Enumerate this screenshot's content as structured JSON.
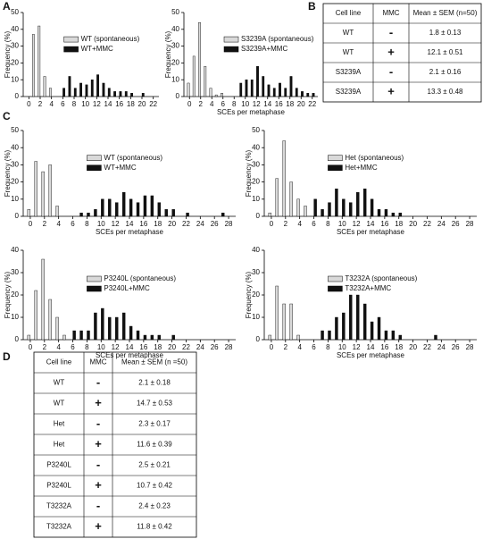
{
  "panel_labels": [
    "A",
    "B",
    "C",
    "D"
  ],
  "chart_data": [
    {
      "type": "bar",
      "ylabel": "Frequency (%)",
      "x": [
        0,
        1,
        2,
        3,
        4,
        5,
        6,
        7,
        8,
        9,
        10,
        11,
        12,
        13,
        14,
        15,
        16,
        17,
        18,
        19,
        20,
        21,
        22
      ],
      "xlim": [
        -1,
        23
      ],
      "xticks": [
        0,
        2,
        4,
        6,
        8,
        10,
        12,
        14,
        16,
        18,
        20,
        22
      ],
      "ylim": [
        0,
        50
      ],
      "yticks": [
        0,
        10,
        20,
        30,
        40,
        50
      ],
      "series": [
        {
          "name": "WT (spontaneous)",
          "color": "#d9d9d9",
          "values": [
            0,
            37,
            42,
            12,
            5,
            0,
            0,
            0,
            0,
            0,
            0,
            0,
            0,
            0,
            0,
            0,
            0,
            0,
            0,
            0,
            0,
            0,
            0
          ]
        },
        {
          "name": "WT+MMC",
          "color": "#111111",
          "values": [
            0,
            0,
            0,
            0,
            0,
            0,
            5,
            12,
            5,
            8,
            7,
            10,
            13,
            8,
            5,
            3,
            3,
            3,
            2,
            0,
            2,
            0,
            0
          ]
        }
      ]
    },
    {
      "type": "bar",
      "ylabel": "Frequency (%)",
      "xlabel": "SCEs per metaphase",
      "x": [
        0,
        1,
        2,
        3,
        4,
        5,
        6,
        7,
        8,
        9,
        10,
        11,
        12,
        13,
        14,
        15,
        16,
        17,
        18,
        19,
        20,
        21,
        22
      ],
      "xlim": [
        -1,
        23
      ],
      "xticks": [
        0,
        2,
        4,
        6,
        8,
        10,
        12,
        14,
        16,
        18,
        20,
        22
      ],
      "ylim": [
        0,
        50
      ],
      "yticks": [
        0,
        10,
        20,
        30,
        40,
        50
      ],
      "series": [
        {
          "name": "S3239A (spontaneous)",
          "color": "#d9d9d9",
          "values": [
            8,
            24,
            44,
            18,
            5,
            1,
            2,
            0,
            0,
            0,
            0,
            0,
            0,
            0,
            0,
            0,
            0,
            0,
            0,
            0,
            0,
            0,
            0
          ]
        },
        {
          "name": "S3239A+MMC",
          "color": "#111111",
          "values": [
            0,
            0,
            0,
            0,
            0,
            0,
            0,
            0,
            0,
            8,
            10,
            10,
            18,
            12,
            7,
            5,
            8,
            5,
            12,
            5,
            3,
            2,
            2
          ]
        }
      ]
    },
    {
      "type": "bar",
      "ylabel": "Frequency (%)",
      "xlabel": "SCEs per metaphase",
      "x": [
        0,
        1,
        2,
        3,
        4,
        5,
        6,
        7,
        8,
        9,
        10,
        11,
        12,
        13,
        14,
        15,
        16,
        17,
        18,
        19,
        20,
        21,
        22,
        23,
        24,
        25,
        26,
        27,
        28
      ],
      "xlim": [
        -1,
        29
      ],
      "xticks": [
        0,
        2,
        4,
        6,
        8,
        10,
        12,
        14,
        16,
        18,
        20,
        22,
        24,
        26,
        28
      ],
      "ylim": [
        0,
        50
      ],
      "yticks": [
        0,
        10,
        20,
        30,
        40,
        50
      ],
      "series": [
        {
          "name": "WT (spontaneous)",
          "color": "#d9d9d9",
          "values": [
            4,
            32,
            26,
            30,
            6,
            0,
            0,
            0,
            0,
            0,
            0,
            0,
            0,
            0,
            0,
            0,
            0,
            0,
            0,
            0,
            0,
            0,
            0,
            0,
            0,
            0,
            0,
            0,
            0
          ]
        },
        {
          "name": "WT+MMC",
          "color": "#111111",
          "values": [
            0,
            0,
            0,
            0,
            0,
            0,
            0,
            2,
            2,
            4,
            10,
            10,
            8,
            14,
            10,
            8,
            12,
            12,
            8,
            4,
            4,
            0,
            2,
            0,
            0,
            0,
            0,
            2,
            0
          ]
        }
      ]
    },
    {
      "type": "bar",
      "ylabel": "Frequency (%)",
      "xlabel": "SCEs per metaphase",
      "x": [
        0,
        1,
        2,
        3,
        4,
        5,
        6,
        7,
        8,
        9,
        10,
        11,
        12,
        13,
        14,
        15,
        16,
        17,
        18,
        19,
        20,
        21,
        22,
        23,
        24,
        25,
        26,
        27,
        28
      ],
      "xlim": [
        -1,
        29
      ],
      "xticks": [
        0,
        2,
        4,
        6,
        8,
        10,
        12,
        14,
        16,
        18,
        20,
        22,
        24,
        26,
        28
      ],
      "ylim": [
        0,
        50
      ],
      "yticks": [
        0,
        10,
        20,
        30,
        40,
        50
      ],
      "series": [
        {
          "name": "Het (spontaneous)",
          "color": "#d9d9d9",
          "values": [
            2,
            22,
            44,
            20,
            10,
            6,
            0,
            0,
            0,
            0,
            0,
            0,
            0,
            0,
            0,
            0,
            0,
            0,
            0,
            0,
            0,
            0,
            0,
            0,
            0,
            0,
            0,
            0,
            0
          ]
        },
        {
          "name": "Het+MMC",
          "color": "#111111",
          "values": [
            0,
            0,
            0,
            0,
            0,
            0,
            10,
            4,
            8,
            16,
            10,
            8,
            14,
            16,
            10,
            4,
            4,
            2,
            2,
            0,
            0,
            0,
            0,
            0,
            0,
            0,
            0,
            0,
            0
          ]
        }
      ]
    },
    {
      "type": "bar",
      "ylabel": "Frequency (%)",
      "xlabel": "SCEs per metaphase",
      "x": [
        0,
        1,
        2,
        3,
        4,
        5,
        6,
        7,
        8,
        9,
        10,
        11,
        12,
        13,
        14,
        15,
        16,
        17,
        18,
        19,
        20,
        21,
        22,
        23,
        24,
        25,
        26,
        27,
        28
      ],
      "xlim": [
        -1,
        29
      ],
      "xticks": [
        0,
        2,
        4,
        6,
        8,
        10,
        12,
        14,
        16,
        18,
        20,
        22,
        24,
        26,
        28
      ],
      "ylim": [
        0,
        40
      ],
      "yticks": [
        0,
        10,
        20,
        30,
        40
      ],
      "series": [
        {
          "name": "P3240L (spontaneous)",
          "color": "#d9d9d9",
          "values": [
            2,
            22,
            36,
            18,
            10,
            2,
            0,
            0,
            0,
            0,
            0,
            0,
            0,
            0,
            0,
            0,
            0,
            0,
            0,
            0,
            0,
            0,
            0,
            0,
            0,
            0,
            0,
            0,
            0
          ]
        },
        {
          "name": "P3240L+MMC",
          "color": "#111111",
          "values": [
            0,
            0,
            0,
            0,
            0,
            0,
            4,
            4,
            4,
            12,
            14,
            10,
            10,
            12,
            6,
            4,
            2,
            2,
            2,
            0,
            2,
            0,
            0,
            0,
            0,
            0,
            0,
            0,
            0
          ]
        }
      ]
    },
    {
      "type": "bar",
      "ylabel": "Frequency (%)",
      "xlabel": "SCEs per metaphase",
      "x": [
        0,
        1,
        2,
        3,
        4,
        5,
        6,
        7,
        8,
        9,
        10,
        11,
        12,
        13,
        14,
        15,
        16,
        17,
        18,
        19,
        20,
        21,
        22,
        23,
        24,
        25,
        26,
        27,
        28
      ],
      "xlim": [
        -1,
        29
      ],
      "xticks": [
        0,
        2,
        4,
        6,
        8,
        10,
        12,
        14,
        16,
        18,
        20,
        22,
        24,
        26,
        28
      ],
      "ylim": [
        0,
        40
      ],
      "yticks": [
        0,
        10,
        20,
        30,
        40
      ],
      "series": [
        {
          "name": "T3232A (spontaneous)",
          "color": "#d9d9d9",
          "values": [
            2,
            24,
            16,
            16,
            2,
            0,
            0,
            0,
            0,
            0,
            0,
            0,
            0,
            0,
            0,
            0,
            0,
            0,
            0,
            0,
            0,
            0,
            0,
            0,
            0,
            0,
            0,
            0,
            0
          ]
        },
        {
          "name": "T3232A+MMC",
          "color": "#111111",
          "values": [
            0,
            0,
            0,
            0,
            0,
            0,
            0,
            4,
            4,
            10,
            12,
            20,
            20,
            16,
            8,
            10,
            4,
            4,
            2,
            0,
            0,
            0,
            0,
            2,
            0,
            0,
            0,
            0,
            0
          ]
        }
      ]
    }
  ],
  "tables": [
    {
      "header": [
        "Cell line",
        "MMC",
        "Mean ± SEM (n=50)"
      ],
      "rows": [
        [
          "WT",
          "-",
          "1.8 ± 0.13"
        ],
        [
          "WT",
          "+",
          "12.1 ± 0.51"
        ],
        [
          "S3239A",
          "-",
          "2.1 ± 0.16"
        ],
        [
          "S3239A",
          "+",
          "13.3 ± 0.48"
        ]
      ]
    },
    {
      "header": [
        "Cell line",
        "MMC",
        "Mean ± SEM (n =50)"
      ],
      "rows": [
        [
          "WT",
          "-",
          "2.1 ± 0.18"
        ],
        [
          "WT",
          "+",
          "14.7 ± 0.53"
        ],
        [
          "Het",
          "-",
          "2.3 ± 0.17"
        ],
        [
          "Het",
          "+",
          "11.6 ± 0.39"
        ],
        [
          "P3240L",
          "-",
          "2.5 ± 0.21"
        ],
        [
          "P3240L",
          "+",
          "10.7 ± 0.42"
        ],
        [
          "T3232A",
          "-",
          "2.4 ± 0.23"
        ],
        [
          "T3232A",
          "+",
          "11.8 ± 0.42"
        ]
      ]
    }
  ]
}
